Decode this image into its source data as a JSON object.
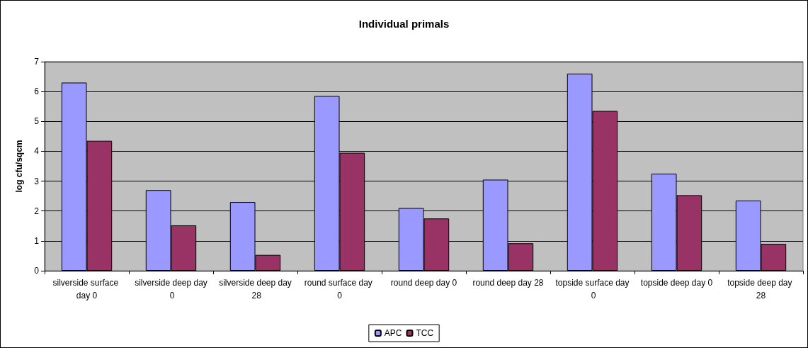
{
  "chart_data": {
    "type": "bar",
    "title": "Individual primals",
    "ylabel": "log cfu/sqcm",
    "categories": [
      "silverside surface day 0",
      "silverside deep day 0",
      "silverside deep day 28",
      "round surface day 0",
      "round deep day 0",
      "round deep day 28",
      "topside surface day 0",
      "topside deep day 0",
      "topside deep day 28"
    ],
    "series": [
      {
        "name": "APC",
        "color": "#9999ff",
        "values": [
          6.3,
          2.7,
          2.3,
          5.85,
          2.1,
          3.05,
          6.6,
          3.25,
          2.35
        ]
      },
      {
        "name": "TCC",
        "color": "#993366",
        "values": [
          4.35,
          1.52,
          0.53,
          3.95,
          1.75,
          0.92,
          5.35,
          2.53,
          0.9
        ]
      }
    ],
    "ylim": [
      0,
      7
    ],
    "yticks": [
      0,
      1,
      2,
      3,
      4,
      5,
      6,
      7
    ],
    "grid": "y",
    "legend": "bottom"
  }
}
